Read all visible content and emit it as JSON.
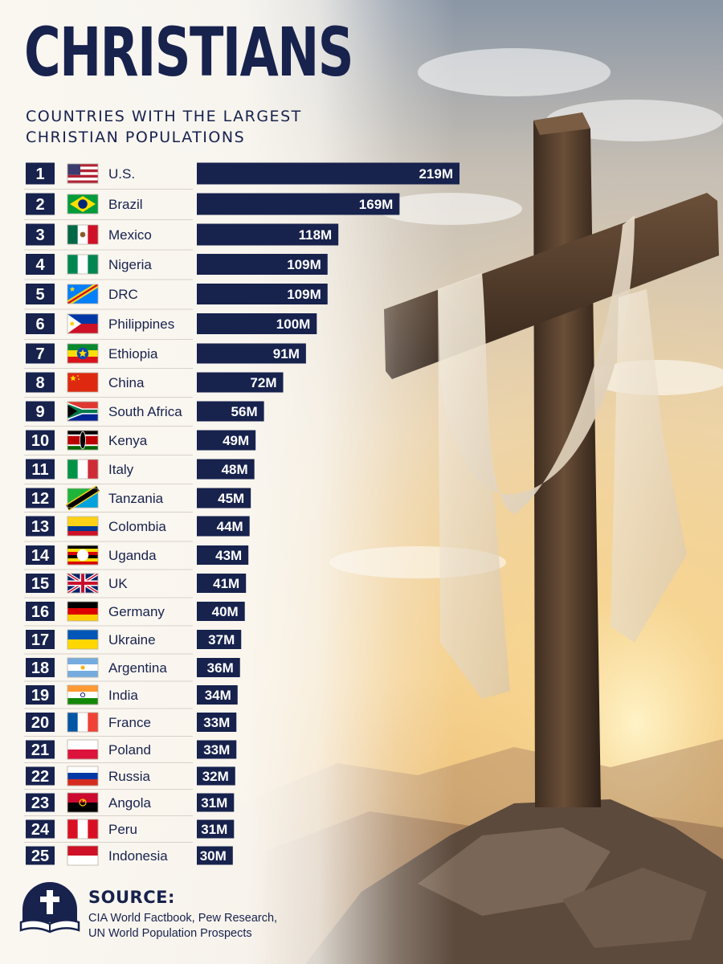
{
  "header": {
    "title": "CHRISTIANS",
    "subtitle": "COUNTRIES WITH THE LARGEST CHRISTIAN POPULATIONS"
  },
  "chart_data": {
    "type": "bar",
    "orientation": "horizontal",
    "title": "CHRISTIANS",
    "subtitle": "COUNTRIES WITH THE LARGEST CHRISTIAN POPULATIONS",
    "unit": "M",
    "ranks": [
      1,
      2,
      3,
      4,
      5,
      6,
      7,
      8,
      9,
      10,
      11,
      12,
      13,
      14,
      15,
      16,
      17,
      18,
      19,
      20,
      21,
      22,
      23,
      24,
      25
    ],
    "categories": [
      "U.S.",
      "Brazil",
      "Mexico",
      "Nigeria",
      "DRC",
      "Philippines",
      "Ethiopia",
      "China",
      "South Africa",
      "Kenya",
      "Italy",
      "Tanzania",
      "Colombia",
      "Uganda",
      "UK",
      "Germany",
      "Ukraine",
      "Argentina",
      "India",
      "France",
      "Poland",
      "Russia",
      "Angola",
      "Peru",
      "Indonesia"
    ],
    "values": [
      219,
      169,
      118,
      109,
      109,
      100,
      91,
      72,
      56,
      49,
      48,
      45,
      44,
      43,
      41,
      40,
      37,
      36,
      34,
      33,
      33,
      32,
      31,
      31,
      30
    ],
    "value_labels": [
      "219M",
      "169M",
      "118M",
      "109M",
      "109M",
      "100M",
      "91M",
      "72M",
      "56M",
      "49M",
      "48M",
      "45M",
      "44M",
      "43M",
      "41M",
      "40M",
      "37M",
      "36M",
      "34M",
      "33M",
      "33M",
      "32M",
      "31M",
      "31M",
      "30M"
    ],
    "flag_icons": [
      "flag-united-states-icon",
      "flag-brazil-icon",
      "flag-mexico-icon",
      "flag-nigeria-icon",
      "flag-dr-congo-icon",
      "flag-philippines-icon",
      "flag-ethiopia-icon",
      "flag-china-icon",
      "flag-south-africa-icon",
      "flag-kenya-icon",
      "flag-italy-icon",
      "flag-tanzania-icon",
      "flag-colombia-icon",
      "flag-uganda-icon",
      "flag-united-kingdom-icon",
      "flag-germany-icon",
      "flag-ukraine-icon",
      "flag-argentina-icon",
      "flag-india-icon",
      "flag-france-icon",
      "flag-poland-icon",
      "flag-russia-icon",
      "flag-angola-icon",
      "flag-peru-icon",
      "flag-indonesia-icon"
    ],
    "bar_color": "#17224d",
    "label_color": "#ffffff"
  },
  "source": {
    "label": "SOURCE:",
    "text": "CIA World Factbook, Pew Research, UN World Population Prospects",
    "icon": "bible-cross-icon"
  },
  "background": {
    "subject": "cross-with-cloth-at-sunset",
    "colors": {
      "navy": "#17224d",
      "sky": "#c7bfb4",
      "sun": "#f7d88f",
      "wood": "#5b4330",
      "cloth": "#ece1cf"
    }
  }
}
